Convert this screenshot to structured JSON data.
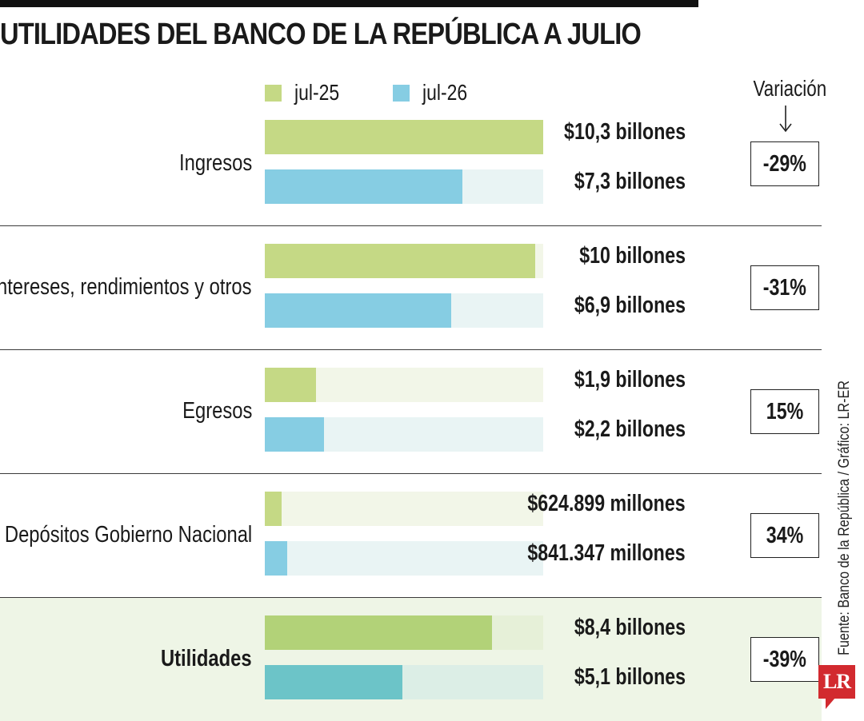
{
  "chart_data": {
    "type": "bar",
    "orientation": "horizontal",
    "title": "UTILIDADES DEL BANCO DE LA REPÚBLICA A JULIO",
    "legend_placement": "top",
    "categories": [
      "Ingresos",
      "Intereses, rendimientos y otros",
      "Egresos",
      "Depósitos Gobierno Nacional",
      "Utilidades"
    ],
    "series": [
      {
        "name": "jul-25",
        "values": [
          10.3,
          10,
          1.9,
          0.624899,
          8.4
        ],
        "labels": [
          "$10,3 billones",
          "$10 billones",
          "$1,9 billones",
          "$624.899 millones",
          "$8,4 billones"
        ]
      },
      {
        "name": "jul-26",
        "values": [
          7.3,
          6.9,
          2.2,
          0.841347,
          5.1
        ],
        "labels": [
          "$7,3 billones",
          "$6,9 billones",
          "$2,2 billones",
          "$841.347 millones",
          "$5,1 billones"
        ]
      }
    ],
    "variation_label": "Variación",
    "variation": [
      "-29%",
      "-31%",
      "15%",
      "34%",
      "-39%"
    ],
    "highlighted_category": "Utilidades",
    "xlim": [
      0,
      10.3
    ]
  },
  "source": "Fuente: Banco de la República / Gráfico: LR-ER",
  "logo_text": "LR",
  "colors": {
    "jul25": "#c5d985",
    "jul26": "#86cde3",
    "utilidades_jul25": "#b2d278",
    "utilidades_jul26": "#6cc4c8",
    "track_jul25": "#f2f6e8",
    "track_jul26": "#e9f4f4",
    "highlight_bg": "#eef5e6",
    "logo": "#d22a2f"
  }
}
